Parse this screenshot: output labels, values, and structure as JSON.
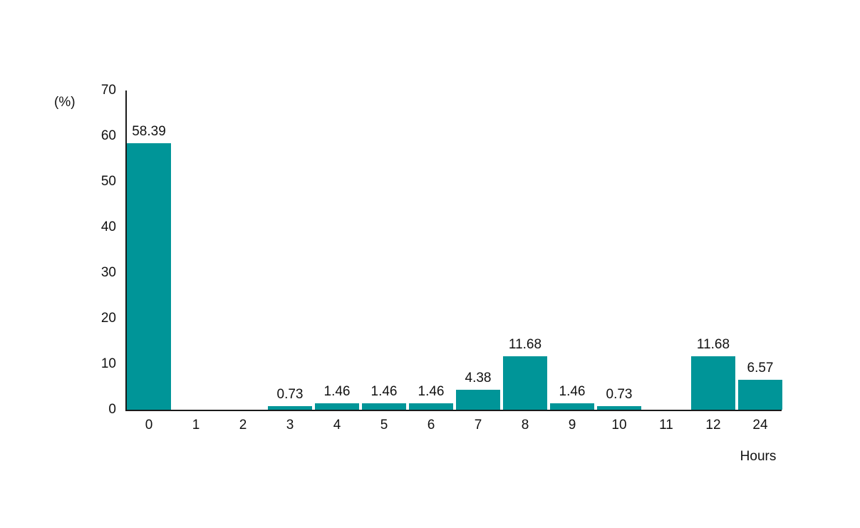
{
  "chart_data": {
    "type": "bar",
    "title": "",
    "xlabel": "Hours",
    "ylabel": "(%)",
    "categories": [
      "0",
      "1",
      "2",
      "3",
      "4",
      "5",
      "6",
      "7",
      "8",
      "9",
      "10",
      "11",
      "12",
      "24"
    ],
    "values": [
      58.39,
      0,
      0,
      0.73,
      1.46,
      1.46,
      1.46,
      4.38,
      11.68,
      1.46,
      0.73,
      0,
      11.68,
      6.57
    ],
    "value_labels": [
      "58.39",
      "",
      "",
      "0.73",
      "1.46",
      "1.46",
      "1.46",
      "4.38",
      "11.68",
      "1.46",
      "0.73",
      "",
      "11.68",
      "6.57"
    ],
    "yticks": [
      0,
      10,
      20,
      30,
      40,
      50,
      60,
      70
    ],
    "ylim": [
      0,
      70
    ],
    "bar_color": "#009598",
    "axis_color": "#1a1a1a",
    "text_color": "#111111",
    "grid": false,
    "legend": false
  }
}
